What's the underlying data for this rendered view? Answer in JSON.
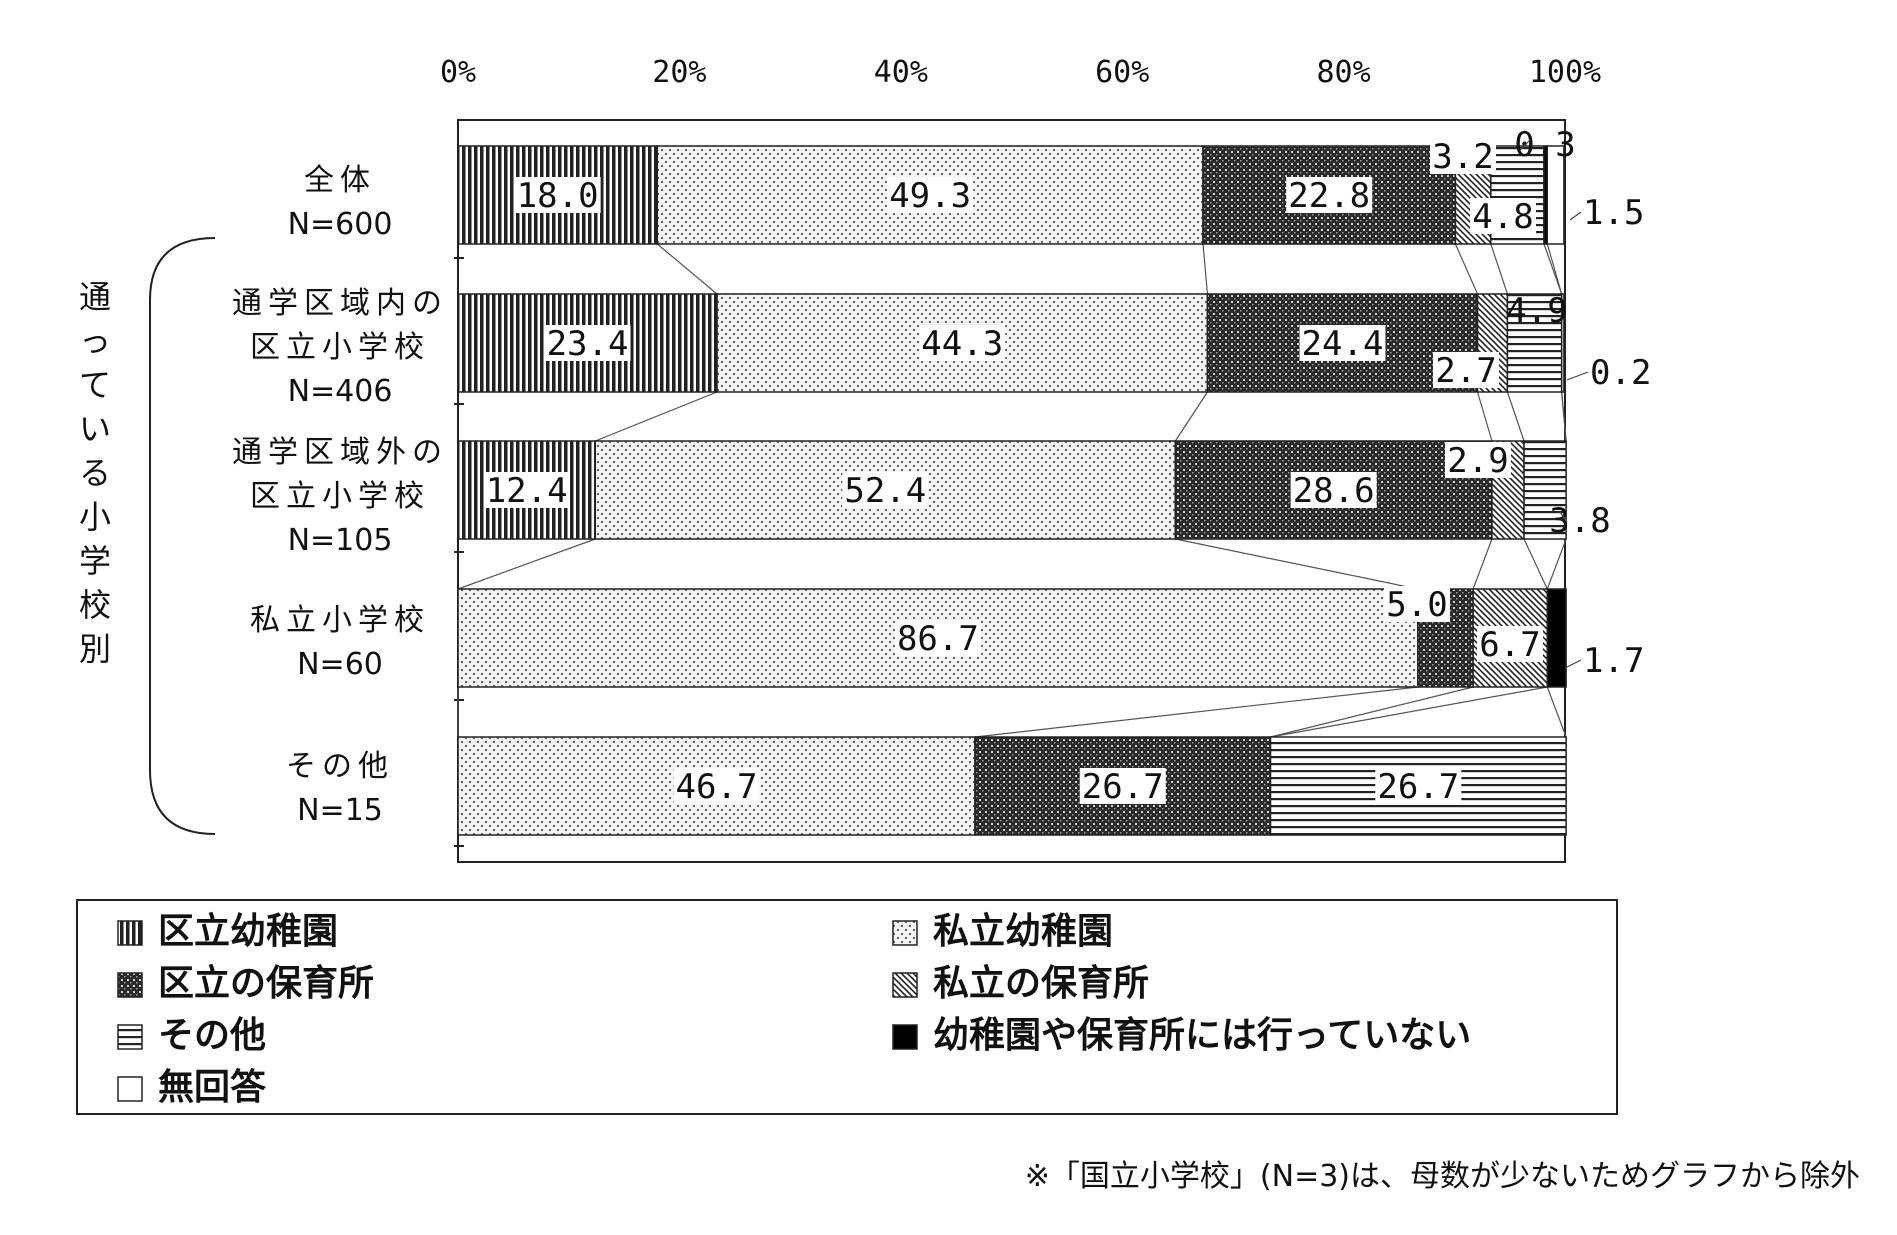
{
  "chart_data": {
    "type": "bar",
    "orientation": "horizontal",
    "stacked": true,
    "x_tick_labels": [
      "0%",
      "20%",
      "40%",
      "60%",
      "80%",
      "100%"
    ],
    "xlim": [
      0,
      100
    ],
    "group_label": "通っている小学校別",
    "categories": [
      {
        "name": "全体",
        "n": "N=600"
      },
      {
        "name": "通学区域内の\n区立小学校",
        "n": "N=406"
      },
      {
        "name": "通学区域外の\n区立小学校",
        "n": "N=105"
      },
      {
        "name": "私立小学校",
        "n": "N=60"
      },
      {
        "name": "その他",
        "n": "N=15"
      }
    ],
    "series": [
      {
        "name": "区立幼稚園",
        "pattern": "vertical-lines",
        "values": [
          18.0,
          23.4,
          12.4,
          0,
          0
        ],
        "labels": [
          "18.0",
          "23.4",
          "12.4",
          "",
          ""
        ]
      },
      {
        "name": "私立幼稚園",
        "pattern": "dots",
        "values": [
          49.3,
          44.3,
          52.4,
          86.7,
          46.7
        ],
        "labels": [
          "49.3",
          "44.3",
          "52.4",
          "86.7",
          "46.7"
        ]
      },
      {
        "name": "区立の保育所",
        "pattern": "crosshatch",
        "values": [
          22.8,
          24.4,
          28.6,
          5.0,
          26.7
        ],
        "labels": [
          "22.8",
          "24.4",
          "28.6",
          "5.0",
          "26.7"
        ]
      },
      {
        "name": "私立の保育所",
        "pattern": "diagonal",
        "values": [
          3.2,
          2.7,
          2.9,
          6.7,
          0
        ],
        "labels": [
          "3.2",
          "2.7",
          "2.9",
          "6.7",
          ""
        ]
      },
      {
        "name": "その他",
        "pattern": "horizontal-lines",
        "values": [
          4.8,
          4.9,
          3.8,
          0,
          26.7
        ],
        "labels": [
          "4.8",
          "4.9",
          "3.8",
          "",
          "26.7"
        ]
      },
      {
        "name": "幼稚園や保育所には行っていない",
        "pattern": "solid-black",
        "values": [
          0.3,
          0,
          0,
          1.7,
          0
        ],
        "labels": [
          "0.3",
          "",
          "",
          "1.7",
          ""
        ]
      },
      {
        "name": "無回答",
        "pattern": "white",
        "values": [
          1.5,
          0.2,
          0,
          0,
          0
        ],
        "labels": [
          "1.5",
          "0.2",
          "",
          "",
          ""
        ]
      }
    ],
    "legend": {
      "placement": "bottom",
      "items_left": [
        "区立幼稚園",
        "区立の保育所",
        "その他",
        "無回答"
      ],
      "items_right": [
        "私立幼稚園",
        "私立の保育所",
        "幼稚園や保育所には行っていない"
      ]
    },
    "footnote": "※「国立小学校」(N=3)は、母数が少ないためグラフから除外"
  }
}
